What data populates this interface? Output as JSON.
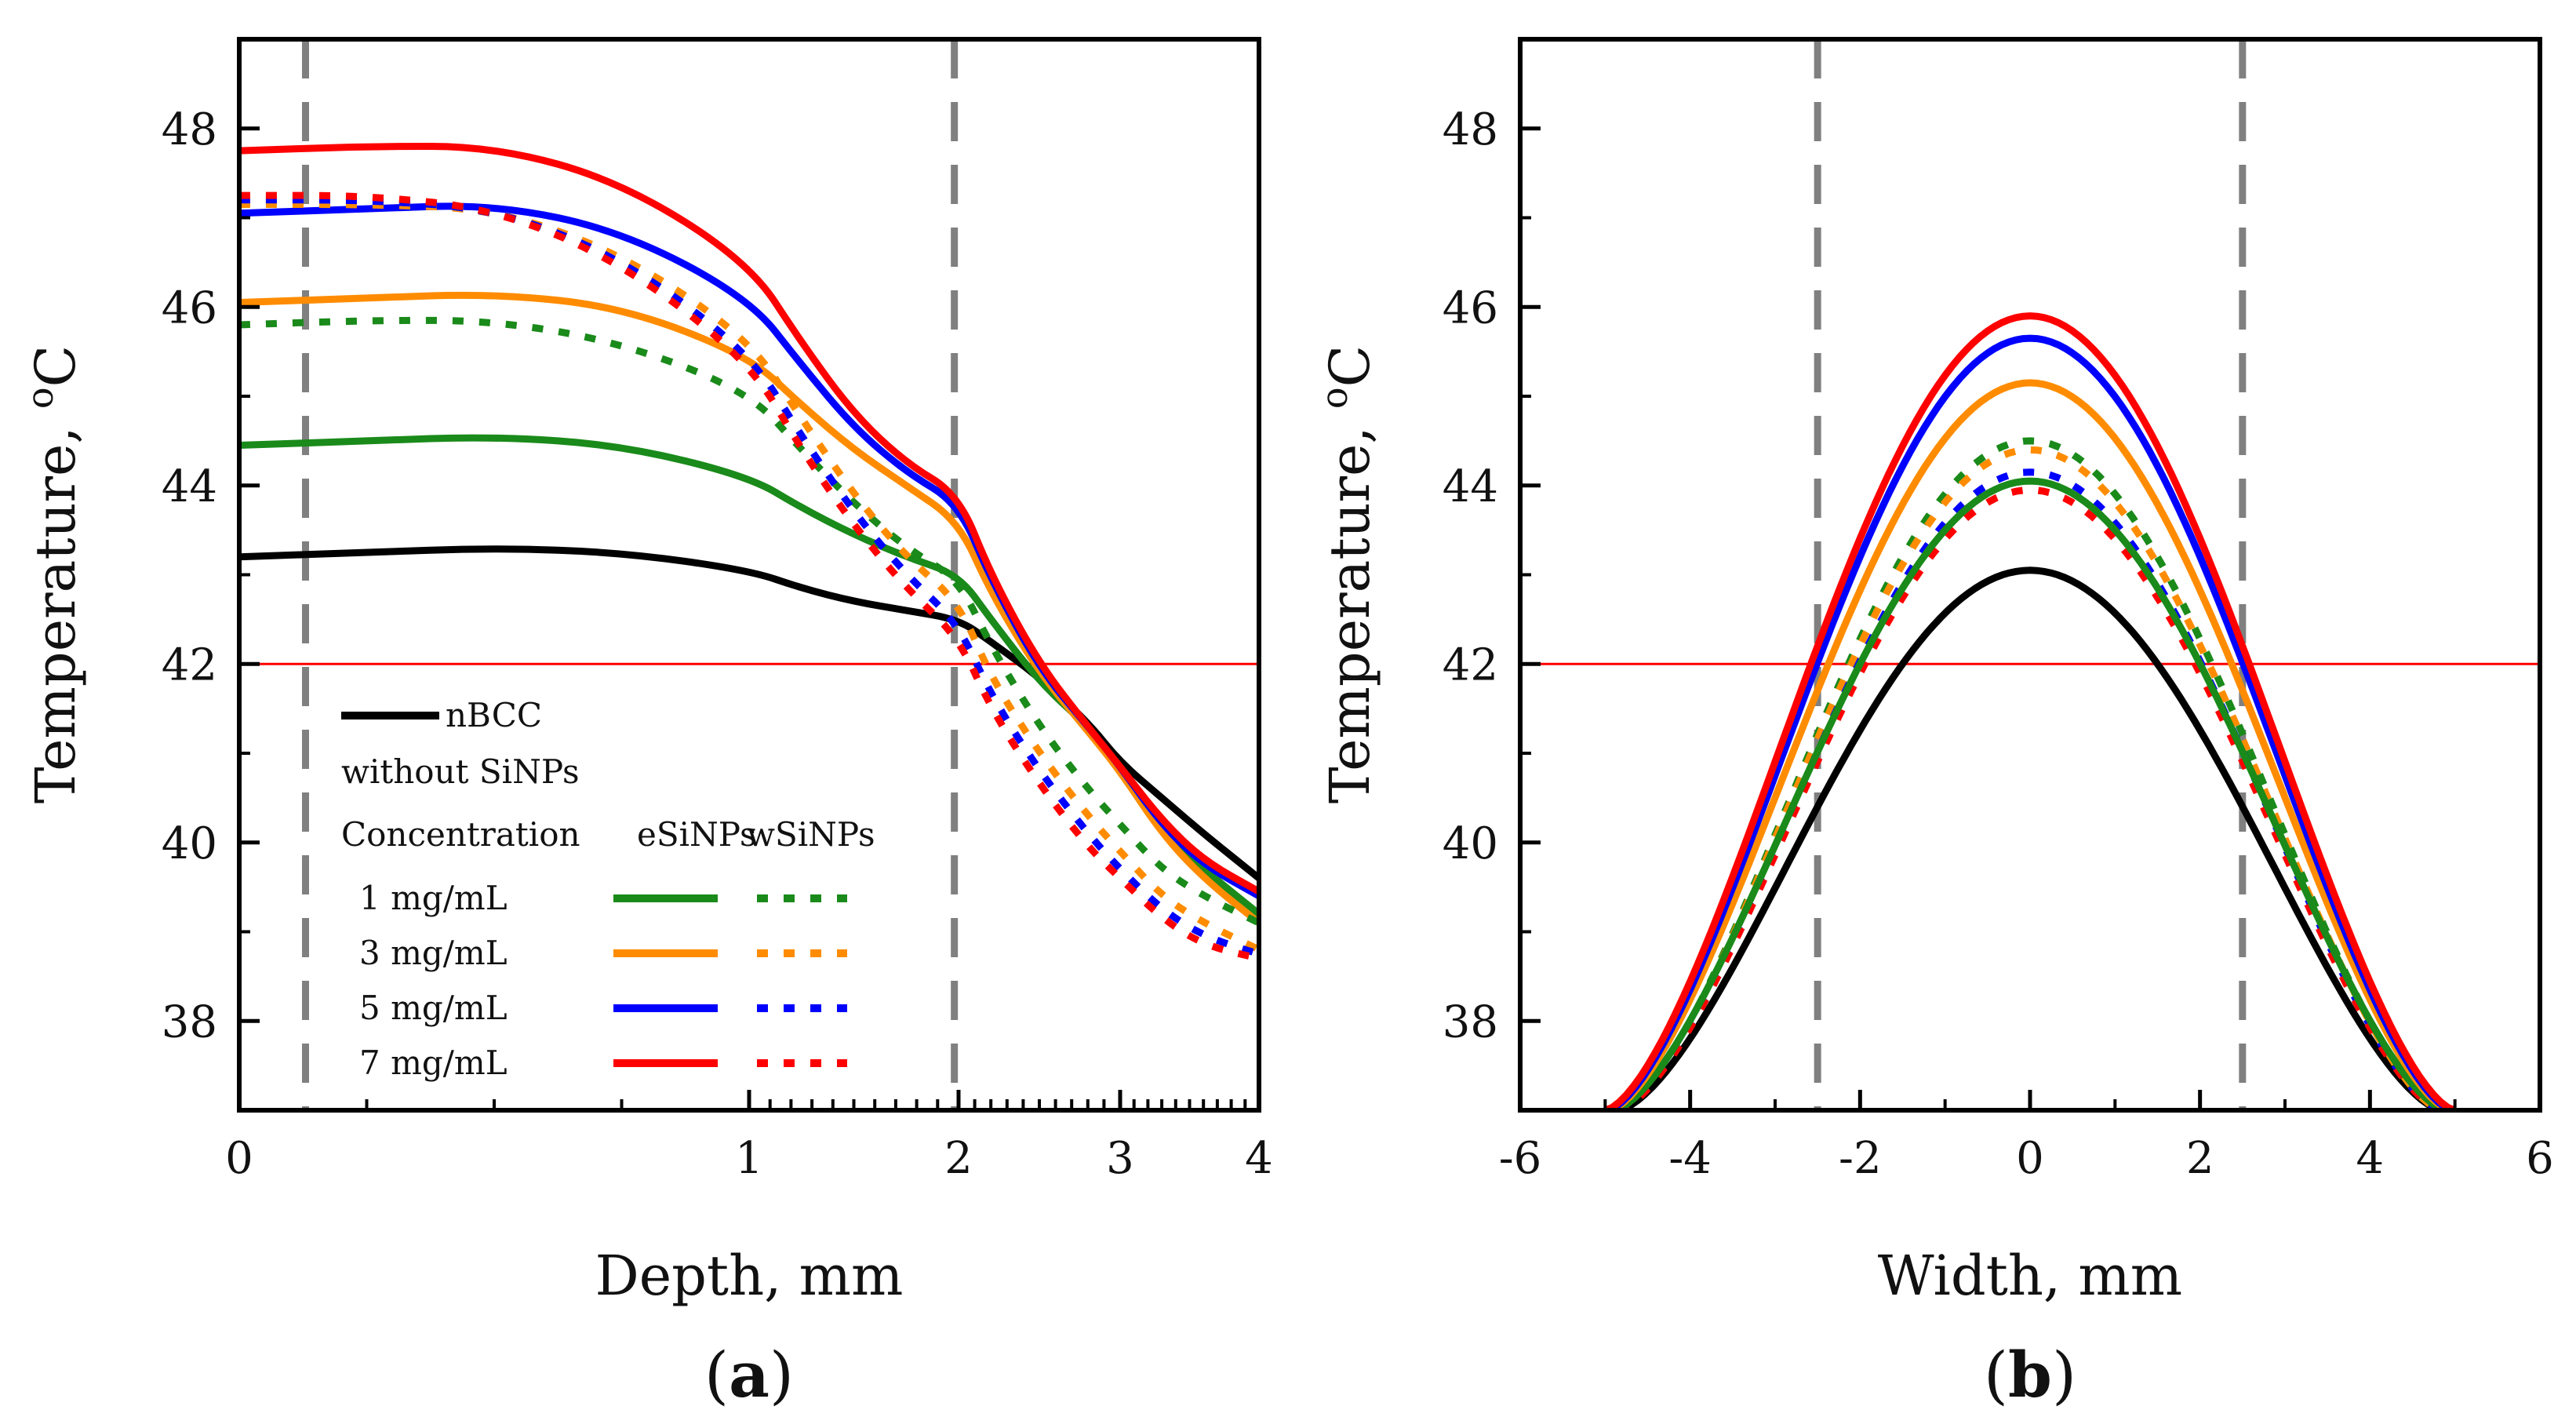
{
  "figure": {
    "panel_a_label": "a",
    "panel_b_label": "b"
  },
  "legend": {
    "series_label": "nBCC",
    "subtitle": "without SiNPs",
    "header_concentration": "Concentration",
    "header_esinps": "eSiNPs",
    "header_wsinps": "wSiNPs",
    "rows": [
      {
        "label": "1 mg/mL",
        "color": "#1a8a1a"
      },
      {
        "label": "3 mg/mL",
        "color": "#ff8c00"
      },
      {
        "label": "5 mg/mL",
        "color": "#0000ff"
      },
      {
        "label": "7 mg/mL",
        "color": "#ff0000"
      }
    ],
    "black_color": "#000000"
  },
  "chart_data": [
    {
      "type": "line",
      "panel": "a",
      "title": "",
      "xlabel": "Depth, mm",
      "ylabel": "Temperature, oC",
      "ylabel_main": "Temperature, ",
      "ylabel_sup": "o",
      "ylabel_unit": "C",
      "xscale": "piecewise: 0-1 / 1-2 linear, 2-4 log-like",
      "xlim": [
        0,
        4
      ],
      "ylim": [
        37,
        49
      ],
      "xticks": [
        "0",
        "1",
        "2",
        "3",
        "4"
      ],
      "xtick_values": [
        0,
        1,
        2,
        3,
        4
      ],
      "yticks": [
        "38",
        "40",
        "42",
        "44",
        "46",
        "48"
      ],
      "ytick_values": [
        38,
        40,
        42,
        44,
        46,
        48
      ],
      "threshold_line": {
        "y": 42,
        "color": "#ff0000"
      },
      "dashed_verticals": {
        "x": [
          0.13,
          1.98
        ],
        "color": "#808080"
      },
      "x": [
        0,
        0.25,
        0.5,
        0.75,
        1.0,
        1.25,
        1.5,
        1.75,
        2.0,
        2.2,
        2.5,
        2.8,
        3.0,
        3.3,
        3.6,
        4.0
      ],
      "series": [
        {
          "name": "nBCC without SiNPs",
          "color": "#000000",
          "style": "solid",
          "values": [
            43.2,
            43.25,
            43.3,
            43.25,
            43.05,
            42.85,
            42.7,
            42.6,
            42.5,
            42.25,
            41.85,
            41.35,
            40.9,
            40.5,
            40.1,
            39.6
          ]
        },
        {
          "name": "1 mg/mL eSiNPs",
          "color": "#1a8a1a",
          "style": "solid",
          "values": [
            44.45,
            44.5,
            44.55,
            44.45,
            44.1,
            43.75,
            43.45,
            43.2,
            43.0,
            42.5,
            41.8,
            41.3,
            40.85,
            40.2,
            39.7,
            39.2
          ]
        },
        {
          "name": "3 mg/mL eSiNPs",
          "color": "#ff8c00",
          "style": "solid",
          "values": [
            46.05,
            46.1,
            46.15,
            46.0,
            45.45,
            44.9,
            44.4,
            44.0,
            43.6,
            42.8,
            41.9,
            41.25,
            40.8,
            40.1,
            39.6,
            39.1
          ]
        },
        {
          "name": "5 mg/mL eSiNPs",
          "color": "#0000ff",
          "style": "solid",
          "values": [
            47.05,
            47.1,
            47.15,
            46.85,
            46.1,
            45.35,
            44.65,
            44.15,
            43.8,
            42.95,
            41.95,
            41.3,
            40.85,
            40.2,
            39.75,
            39.4
          ]
        },
        {
          "name": "7 mg/mL eSiNPs",
          "color": "#ff0000",
          "style": "solid",
          "values": [
            47.75,
            47.8,
            47.8,
            47.4,
            46.5,
            45.6,
            44.8,
            44.25,
            43.9,
            43.0,
            42.0,
            41.3,
            40.85,
            40.25,
            39.8,
            39.45
          ]
        },
        {
          "name": "1 mg/mL wSiNPs",
          "color": "#1a8a1a",
          "style": "dotted",
          "values": [
            45.8,
            45.85,
            45.85,
            45.6,
            45.05,
            44.4,
            43.8,
            43.3,
            42.95,
            42.2,
            41.3,
            40.6,
            40.2,
            39.7,
            39.4,
            39.1
          ]
        },
        {
          "name": "3 mg/mL wSiNPs",
          "color": "#ff8c00",
          "style": "dotted",
          "values": [
            47.15,
            47.15,
            47.1,
            46.6,
            45.65,
            44.75,
            43.9,
            43.2,
            42.7,
            41.85,
            41.0,
            40.3,
            39.9,
            39.4,
            39.1,
            38.8
          ]
        },
        {
          "name": "5 mg/mL wSiNPs",
          "color": "#0000ff",
          "style": "dotted",
          "values": [
            47.2,
            47.2,
            47.1,
            46.55,
            45.5,
            44.55,
            43.7,
            43.0,
            42.45,
            41.65,
            40.8,
            40.1,
            39.7,
            39.25,
            38.95,
            38.75
          ]
        },
        {
          "name": "7 mg/mL wSiNPs",
          "color": "#ff0000",
          "style": "dotted",
          "values": [
            47.25,
            47.25,
            47.1,
            46.5,
            45.4,
            44.4,
            43.55,
            42.85,
            42.3,
            41.5,
            40.65,
            39.95,
            39.6,
            39.15,
            38.85,
            38.7
          ]
        }
      ]
    },
    {
      "type": "line",
      "panel": "b",
      "title": "",
      "xlabel": "Width, mm",
      "ylabel": "Temperature, oC",
      "ylabel_main": "Temperature, ",
      "ylabel_sup": "o",
      "ylabel_unit": "C",
      "xlim": [
        -6,
        6
      ],
      "ylim": [
        37,
        49
      ],
      "xticks": [
        "-6",
        "-4",
        "-2",
        "0",
        "2",
        "4",
        "6"
      ],
      "xtick_values": [
        -6,
        -4,
        -2,
        0,
        2,
        4,
        6
      ],
      "yticks": [
        "38",
        "40",
        "42",
        "44",
        "46",
        "48"
      ],
      "ytick_values": [
        38,
        40,
        42,
        44,
        46,
        48
      ],
      "threshold_line": {
        "y": 42,
        "color": "#ff0000"
      },
      "dashed_verticals": {
        "x": [
          -2.5,
          2.5
        ],
        "color": "#808080"
      },
      "series": [
        {
          "name": "nBCC without SiNPs",
          "color": "#000000",
          "style": "solid",
          "peak": 43.05,
          "half_width": 4.85
        },
        {
          "name": "1 mg/mL wSiNPs",
          "color": "#1a8a1a",
          "style": "dotted",
          "peak": 44.5,
          "half_width": 4.85
        },
        {
          "name": "3 mg/mL wSiNPs",
          "color": "#ff8c00",
          "style": "dotted",
          "peak": 44.4,
          "half_width": 4.85
        },
        {
          "name": "5 mg/mL wSiNPs",
          "color": "#0000ff",
          "style": "dotted",
          "peak": 44.15,
          "half_width": 4.85
        },
        {
          "name": "7 mg/mL wSiNPs",
          "color": "#ff0000",
          "style": "dotted",
          "peak": 43.95,
          "half_width": 4.85
        },
        {
          "name": "1 mg/mL eSiNPs",
          "color": "#1a8a1a",
          "style": "solid",
          "peak": 44.05,
          "half_width": 4.9
        },
        {
          "name": "3 mg/mL eSiNPs",
          "color": "#ff8c00",
          "style": "solid",
          "peak": 45.15,
          "half_width": 4.95
        },
        {
          "name": "5 mg/mL eSiNPs",
          "color": "#0000ff",
          "style": "solid",
          "peak": 45.65,
          "half_width": 4.97
        },
        {
          "name": "7 mg/mL eSiNPs",
          "color": "#ff0000",
          "style": "solid",
          "peak": 45.9,
          "half_width": 5.0
        }
      ]
    }
  ]
}
